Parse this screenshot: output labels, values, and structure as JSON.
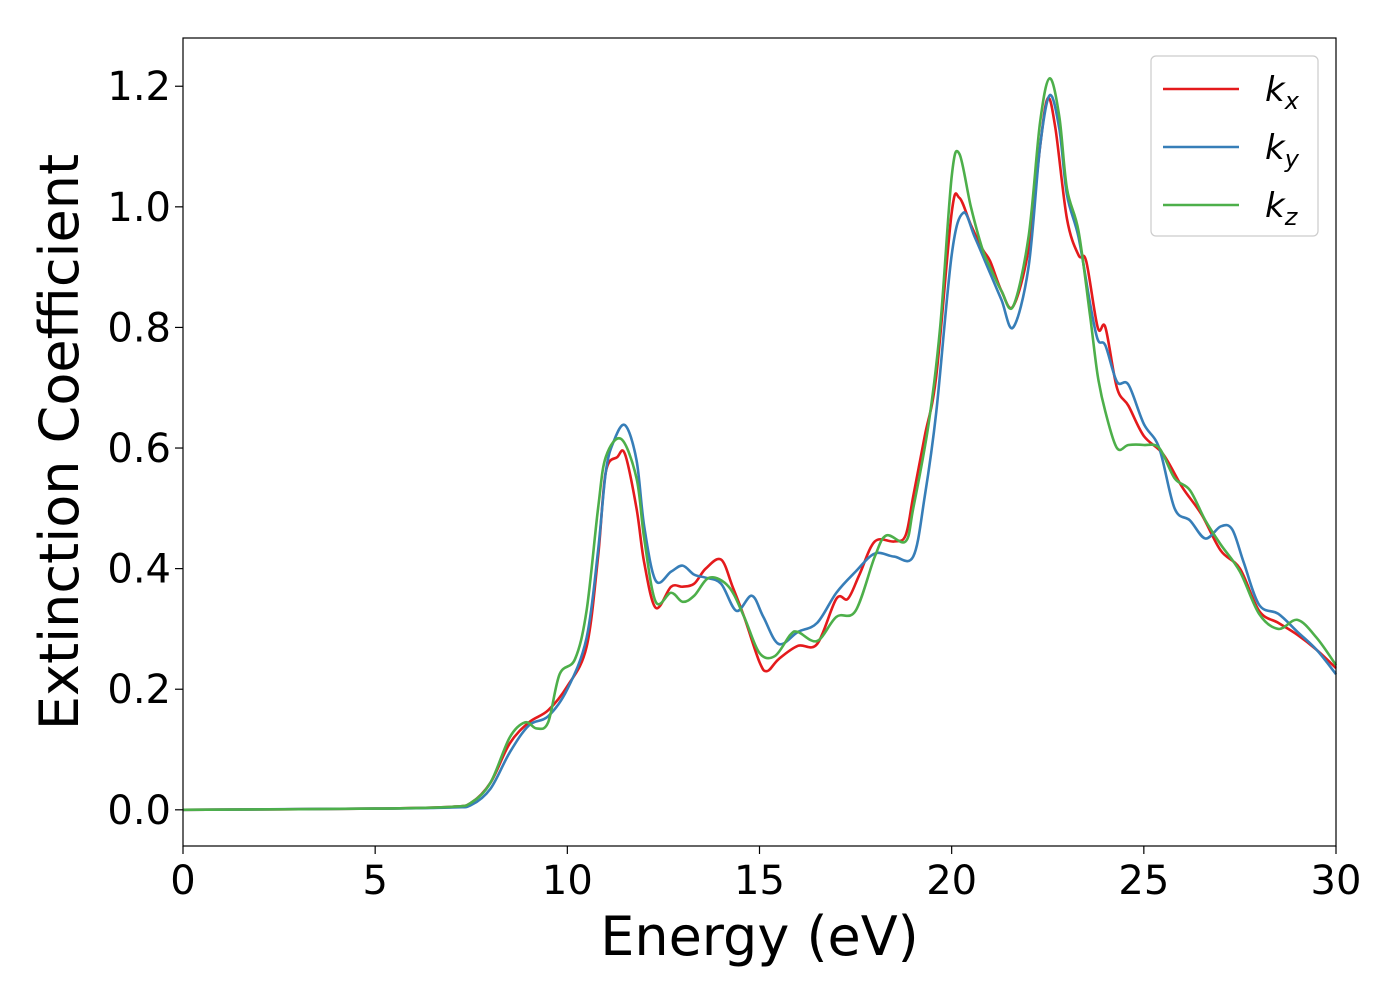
{
  "chart_data": {
    "type": "line",
    "title": "",
    "xlabel": "Energy (eV)",
    "ylabel": "Extinction Coefficient",
    "xlim": [
      0,
      30
    ],
    "ylim": [
      -0.06,
      1.28
    ],
    "xticks": [
      0,
      5,
      10,
      15,
      20,
      25,
      30
    ],
    "xtick_labels": [
      "0",
      "5",
      "10",
      "15",
      "20",
      "25",
      "30"
    ],
    "yticks": [
      0.0,
      0.2,
      0.4,
      0.6,
      0.8,
      1.0,
      1.2
    ],
    "ytick_labels": [
      "0.0",
      "0.2",
      "0.4",
      "0.6",
      "0.8",
      "1.0",
      "1.2"
    ],
    "grid": false,
    "legend_position": "top-right",
    "series": [
      {
        "name": "k_x",
        "label_base": "k",
        "label_sub": "x",
        "color": "#e41a1c",
        "points": [
          [
            0,
            0
          ],
          [
            5,
            0.002
          ],
          [
            7,
            0.005
          ],
          [
            7.5,
            0.012
          ],
          [
            8,
            0.045
          ],
          [
            8.5,
            0.11
          ],
          [
            9,
            0.145
          ],
          [
            9.5,
            0.165
          ],
          [
            10,
            0.205
          ],
          [
            10.5,
            0.27
          ],
          [
            10.8,
            0.42
          ],
          [
            11,
            0.56
          ],
          [
            11.3,
            0.585
          ],
          [
            11.5,
            0.59
          ],
          [
            11.8,
            0.5
          ],
          [
            12,
            0.41
          ],
          [
            12.3,
            0.335
          ],
          [
            12.7,
            0.37
          ],
          [
            13,
            0.37
          ],
          [
            13.3,
            0.375
          ],
          [
            13.6,
            0.4
          ],
          [
            14,
            0.415
          ],
          [
            14.3,
            0.37
          ],
          [
            14.6,
            0.32
          ],
          [
            15,
            0.245
          ],
          [
            15.2,
            0.23
          ],
          [
            15.5,
            0.25
          ],
          [
            16,
            0.272
          ],
          [
            16.5,
            0.275
          ],
          [
            17,
            0.35
          ],
          [
            17.3,
            0.35
          ],
          [
            17.6,
            0.39
          ],
          [
            18,
            0.445
          ],
          [
            18.5,
            0.445
          ],
          [
            18.8,
            0.455
          ],
          [
            19,
            0.52
          ],
          [
            19.3,
            0.62
          ],
          [
            19.6,
            0.72
          ],
          [
            20,
            0.99
          ],
          [
            20.2,
            1.015
          ],
          [
            20.5,
            0.97
          ],
          [
            20.8,
            0.93
          ],
          [
            21,
            0.91
          ],
          [
            21.3,
            0.86
          ],
          [
            21.6,
            0.835
          ],
          [
            22,
            0.93
          ],
          [
            22.3,
            1.1
          ],
          [
            22.5,
            1.18
          ],
          [
            22.7,
            1.13
          ],
          [
            23,
            0.98
          ],
          [
            23.3,
            0.92
          ],
          [
            23.5,
            0.91
          ],
          [
            23.8,
            0.8
          ],
          [
            24,
            0.8
          ],
          [
            24.3,
            0.7
          ],
          [
            24.6,
            0.67
          ],
          [
            25,
            0.62
          ],
          [
            25.5,
            0.59
          ],
          [
            26,
            0.535
          ],
          [
            26.5,
            0.49
          ],
          [
            27,
            0.43
          ],
          [
            27.5,
            0.4
          ],
          [
            28,
            0.33
          ],
          [
            28.5,
            0.31
          ],
          [
            29,
            0.29
          ],
          [
            29.5,
            0.265
          ],
          [
            30,
            0.235
          ]
        ]
      },
      {
        "name": "k_y",
        "label_base": "k",
        "label_sub": "y",
        "color": "#377eb8",
        "points": [
          [
            0,
            0
          ],
          [
            5,
            0.002
          ],
          [
            7,
            0.004
          ],
          [
            7.5,
            0.008
          ],
          [
            8,
            0.035
          ],
          [
            8.5,
            0.095
          ],
          [
            9,
            0.14
          ],
          [
            9.5,
            0.155
          ],
          [
            10,
            0.2
          ],
          [
            10.5,
            0.285
          ],
          [
            10.8,
            0.43
          ],
          [
            11,
            0.56
          ],
          [
            11.2,
            0.61
          ],
          [
            11.5,
            0.638
          ],
          [
            11.8,
            0.58
          ],
          [
            12,
            0.47
          ],
          [
            12.3,
            0.38
          ],
          [
            12.7,
            0.395
          ],
          [
            13,
            0.405
          ],
          [
            13.3,
            0.39
          ],
          [
            13.6,
            0.385
          ],
          [
            14,
            0.375
          ],
          [
            14.4,
            0.33
          ],
          [
            14.8,
            0.355
          ],
          [
            15.1,
            0.32
          ],
          [
            15.5,
            0.275
          ],
          [
            16,
            0.295
          ],
          [
            16.5,
            0.31
          ],
          [
            17,
            0.36
          ],
          [
            17.5,
            0.395
          ],
          [
            18,
            0.425
          ],
          [
            18.5,
            0.42
          ],
          [
            19,
            0.42
          ],
          [
            19.3,
            0.52
          ],
          [
            19.6,
            0.66
          ],
          [
            20,
            0.92
          ],
          [
            20.3,
            0.99
          ],
          [
            20.6,
            0.95
          ],
          [
            21,
            0.89
          ],
          [
            21.3,
            0.845
          ],
          [
            21.6,
            0.8
          ],
          [
            22,
            0.9
          ],
          [
            22.3,
            1.1
          ],
          [
            22.55,
            1.185
          ],
          [
            22.8,
            1.13
          ],
          [
            23,
            1.02
          ],
          [
            23.3,
            0.95
          ],
          [
            23.6,
            0.84
          ],
          [
            23.8,
            0.78
          ],
          [
            24,
            0.77
          ],
          [
            24.3,
            0.71
          ],
          [
            24.6,
            0.705
          ],
          [
            25,
            0.64
          ],
          [
            25.4,
            0.6
          ],
          [
            25.8,
            0.5
          ],
          [
            26.2,
            0.48
          ],
          [
            26.6,
            0.45
          ],
          [
            27,
            0.47
          ],
          [
            27.3,
            0.465
          ],
          [
            27.6,
            0.41
          ],
          [
            28,
            0.34
          ],
          [
            28.5,
            0.325
          ],
          [
            29,
            0.295
          ],
          [
            29.5,
            0.265
          ],
          [
            30,
            0.225
          ]
        ]
      },
      {
        "name": "k_z",
        "label_base": "k",
        "label_sub": "z",
        "color": "#4daf4a",
        "points": [
          [
            0,
            0
          ],
          [
            5,
            0.002
          ],
          [
            7,
            0.005
          ],
          [
            7.5,
            0.012
          ],
          [
            8,
            0.045
          ],
          [
            8.5,
            0.12
          ],
          [
            8.9,
            0.145
          ],
          [
            9.2,
            0.135
          ],
          [
            9.5,
            0.145
          ],
          [
            9.8,
            0.225
          ],
          [
            10.2,
            0.25
          ],
          [
            10.5,
            0.33
          ],
          [
            10.8,
            0.5
          ],
          [
            11,
            0.585
          ],
          [
            11.4,
            0.615
          ],
          [
            11.8,
            0.55
          ],
          [
            12,
            0.45
          ],
          [
            12.3,
            0.345
          ],
          [
            12.7,
            0.36
          ],
          [
            13,
            0.345
          ],
          [
            13.3,
            0.355
          ],
          [
            13.7,
            0.385
          ],
          [
            14.2,
            0.37
          ],
          [
            14.6,
            0.32
          ],
          [
            15,
            0.26
          ],
          [
            15.4,
            0.255
          ],
          [
            15.8,
            0.29
          ],
          [
            16,
            0.295
          ],
          [
            16.5,
            0.28
          ],
          [
            17,
            0.32
          ],
          [
            17.5,
            0.33
          ],
          [
            18,
            0.42
          ],
          [
            18.3,
            0.455
          ],
          [
            18.8,
            0.445
          ],
          [
            19,
            0.5
          ],
          [
            19.4,
            0.64
          ],
          [
            19.7,
            0.8
          ],
          [
            20,
            1.05
          ],
          [
            20.2,
            1.088
          ],
          [
            20.5,
            1.0
          ],
          [
            20.8,
            0.93
          ],
          [
            21,
            0.9
          ],
          [
            21.3,
            0.86
          ],
          [
            21.6,
            0.835
          ],
          [
            22,
            0.95
          ],
          [
            22.3,
            1.14
          ],
          [
            22.55,
            1.213
          ],
          [
            22.8,
            1.15
          ],
          [
            23,
            1.03
          ],
          [
            23.3,
            0.96
          ],
          [
            23.6,
            0.82
          ],
          [
            23.8,
            0.72
          ],
          [
            24,
            0.66
          ],
          [
            24.3,
            0.6
          ],
          [
            24.6,
            0.605
          ],
          [
            25,
            0.605
          ],
          [
            25.4,
            0.6
          ],
          [
            25.8,
            0.55
          ],
          [
            26.2,
            0.53
          ],
          [
            26.6,
            0.48
          ],
          [
            27,
            0.44
          ],
          [
            27.5,
            0.395
          ],
          [
            28,
            0.325
          ],
          [
            28.5,
            0.3
          ],
          [
            29,
            0.315
          ],
          [
            29.5,
            0.285
          ],
          [
            30,
            0.24
          ]
        ]
      }
    ]
  }
}
